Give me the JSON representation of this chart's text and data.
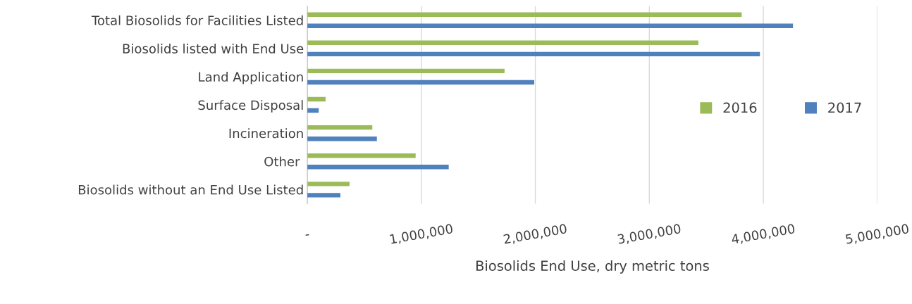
{
  "chart_data": {
    "type": "bar",
    "orientation": "horizontal",
    "xlabel": "Biosolids End Use, dry metric tons",
    "categories": [
      "Total Biosolids for Facilities Listed",
      "Biosolids listed with End Use",
      "Land Application",
      "Surface Disposal",
      "Incineration",
      "Other ",
      "Biosolids without an End Use Listed"
    ],
    "series": [
      {
        "name": "2016",
        "color": "#9bbb59",
        "values": [
          3810000,
          3430000,
          1730000,
          160000,
          570000,
          950000,
          370000
        ]
      },
      {
        "name": "2017",
        "color": "#4f81bd",
        "values": [
          4260000,
          3970000,
          1990000,
          100000,
          610000,
          1240000,
          290000
        ]
      }
    ],
    "xlim": [
      0,
      5000000
    ],
    "xticks": [
      {
        "value": 0,
        "label": "-"
      },
      {
        "value": 1000000,
        "label": "1,000,000"
      },
      {
        "value": 2000000,
        "label": "2,000,000"
      },
      {
        "value": 3000000,
        "label": "3,000,000"
      },
      {
        "value": 4000000,
        "label": "4,000,000"
      },
      {
        "value": 5000000,
        "label": "5,000,000"
      }
    ],
    "grid": "x",
    "legend": "right"
  }
}
